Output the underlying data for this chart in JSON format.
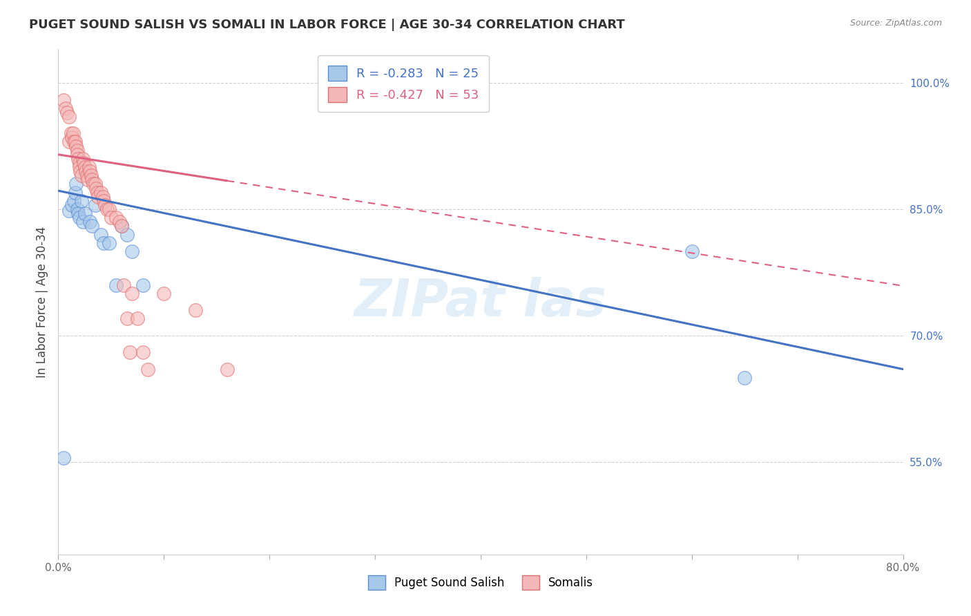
{
  "title": "PUGET SOUND SALISH VS SOMALI IN LABOR FORCE | AGE 30-34 CORRELATION CHART",
  "source": "Source: ZipAtlas.com",
  "xlabel": "",
  "ylabel": "In Labor Force | Age 30-34",
  "xlim": [
    0.0,
    0.8
  ],
  "ylim": [
    0.44,
    1.04
  ],
  "xticks": [
    0.0,
    0.1,
    0.2,
    0.3,
    0.4,
    0.5,
    0.6,
    0.7,
    0.8
  ],
  "xticklabels": [
    "0.0%",
    "",
    "",
    "",
    "",
    "",
    "",
    "",
    "80.0%"
  ],
  "ytick_right_labels": [
    "100.0%",
    "85.0%",
    "70.0%",
    "55.0%"
  ],
  "ytick_right_values": [
    1.0,
    0.85,
    0.7,
    0.55
  ],
  "blue_color": "#a8c8e8",
  "pink_color": "#f4b8b8",
  "blue_edge_color": "#5b8dd9",
  "pink_edge_color": "#e07070",
  "blue_line_color": "#4472c4",
  "pink_line_color": "#e06080",
  "blue_R": -0.283,
  "blue_N": 25,
  "pink_R": -0.427,
  "pink_N": 53,
  "legend_label_blue": "Puget Sound Salish",
  "legend_label_pink": "Somalis",
  "blue_line_intercept": 0.872,
  "blue_line_slope": -0.265,
  "pink_line_intercept": 0.915,
  "pink_line_slope": -0.195,
  "blue_scatter_x": [
    0.005,
    0.01,
    0.013,
    0.015,
    0.016,
    0.017,
    0.018,
    0.019,
    0.02,
    0.022,
    0.023,
    0.025,
    0.03,
    0.032,
    0.035,
    0.04,
    0.043,
    0.048,
    0.055,
    0.06,
    0.065,
    0.07,
    0.08,
    0.6,
    0.65
  ],
  "blue_scatter_y": [
    0.555,
    0.848,
    0.855,
    0.86,
    0.87,
    0.88,
    0.85,
    0.845,
    0.84,
    0.86,
    0.835,
    0.845,
    0.835,
    0.83,
    0.855,
    0.82,
    0.81,
    0.81,
    0.76,
    0.83,
    0.82,
    0.8,
    0.76,
    0.8,
    0.65
  ],
  "pink_scatter_x": [
    0.005,
    0.007,
    0.008,
    0.01,
    0.01,
    0.012,
    0.013,
    0.014,
    0.015,
    0.016,
    0.017,
    0.018,
    0.018,
    0.019,
    0.02,
    0.02,
    0.021,
    0.022,
    0.023,
    0.024,
    0.025,
    0.026,
    0.027,
    0.028,
    0.029,
    0.03,
    0.031,
    0.032,
    0.033,
    0.035,
    0.036,
    0.037,
    0.038,
    0.04,
    0.042,
    0.043,
    0.044,
    0.046,
    0.048,
    0.05,
    0.055,
    0.058,
    0.06,
    0.062,
    0.065,
    0.068,
    0.07,
    0.075,
    0.08,
    0.085,
    0.1,
    0.13,
    0.16
  ],
  "pink_scatter_y": [
    0.98,
    0.97,
    0.965,
    0.96,
    0.93,
    0.94,
    0.935,
    0.94,
    0.93,
    0.93,
    0.925,
    0.92,
    0.915,
    0.91,
    0.905,
    0.9,
    0.895,
    0.89,
    0.91,
    0.905,
    0.9,
    0.895,
    0.89,
    0.885,
    0.9,
    0.895,
    0.89,
    0.885,
    0.88,
    0.88,
    0.875,
    0.87,
    0.865,
    0.87,
    0.865,
    0.86,
    0.855,
    0.85,
    0.85,
    0.84,
    0.84,
    0.835,
    0.83,
    0.76,
    0.72,
    0.68,
    0.75,
    0.72,
    0.68,
    0.66,
    0.75,
    0.73,
    0.66
  ]
}
